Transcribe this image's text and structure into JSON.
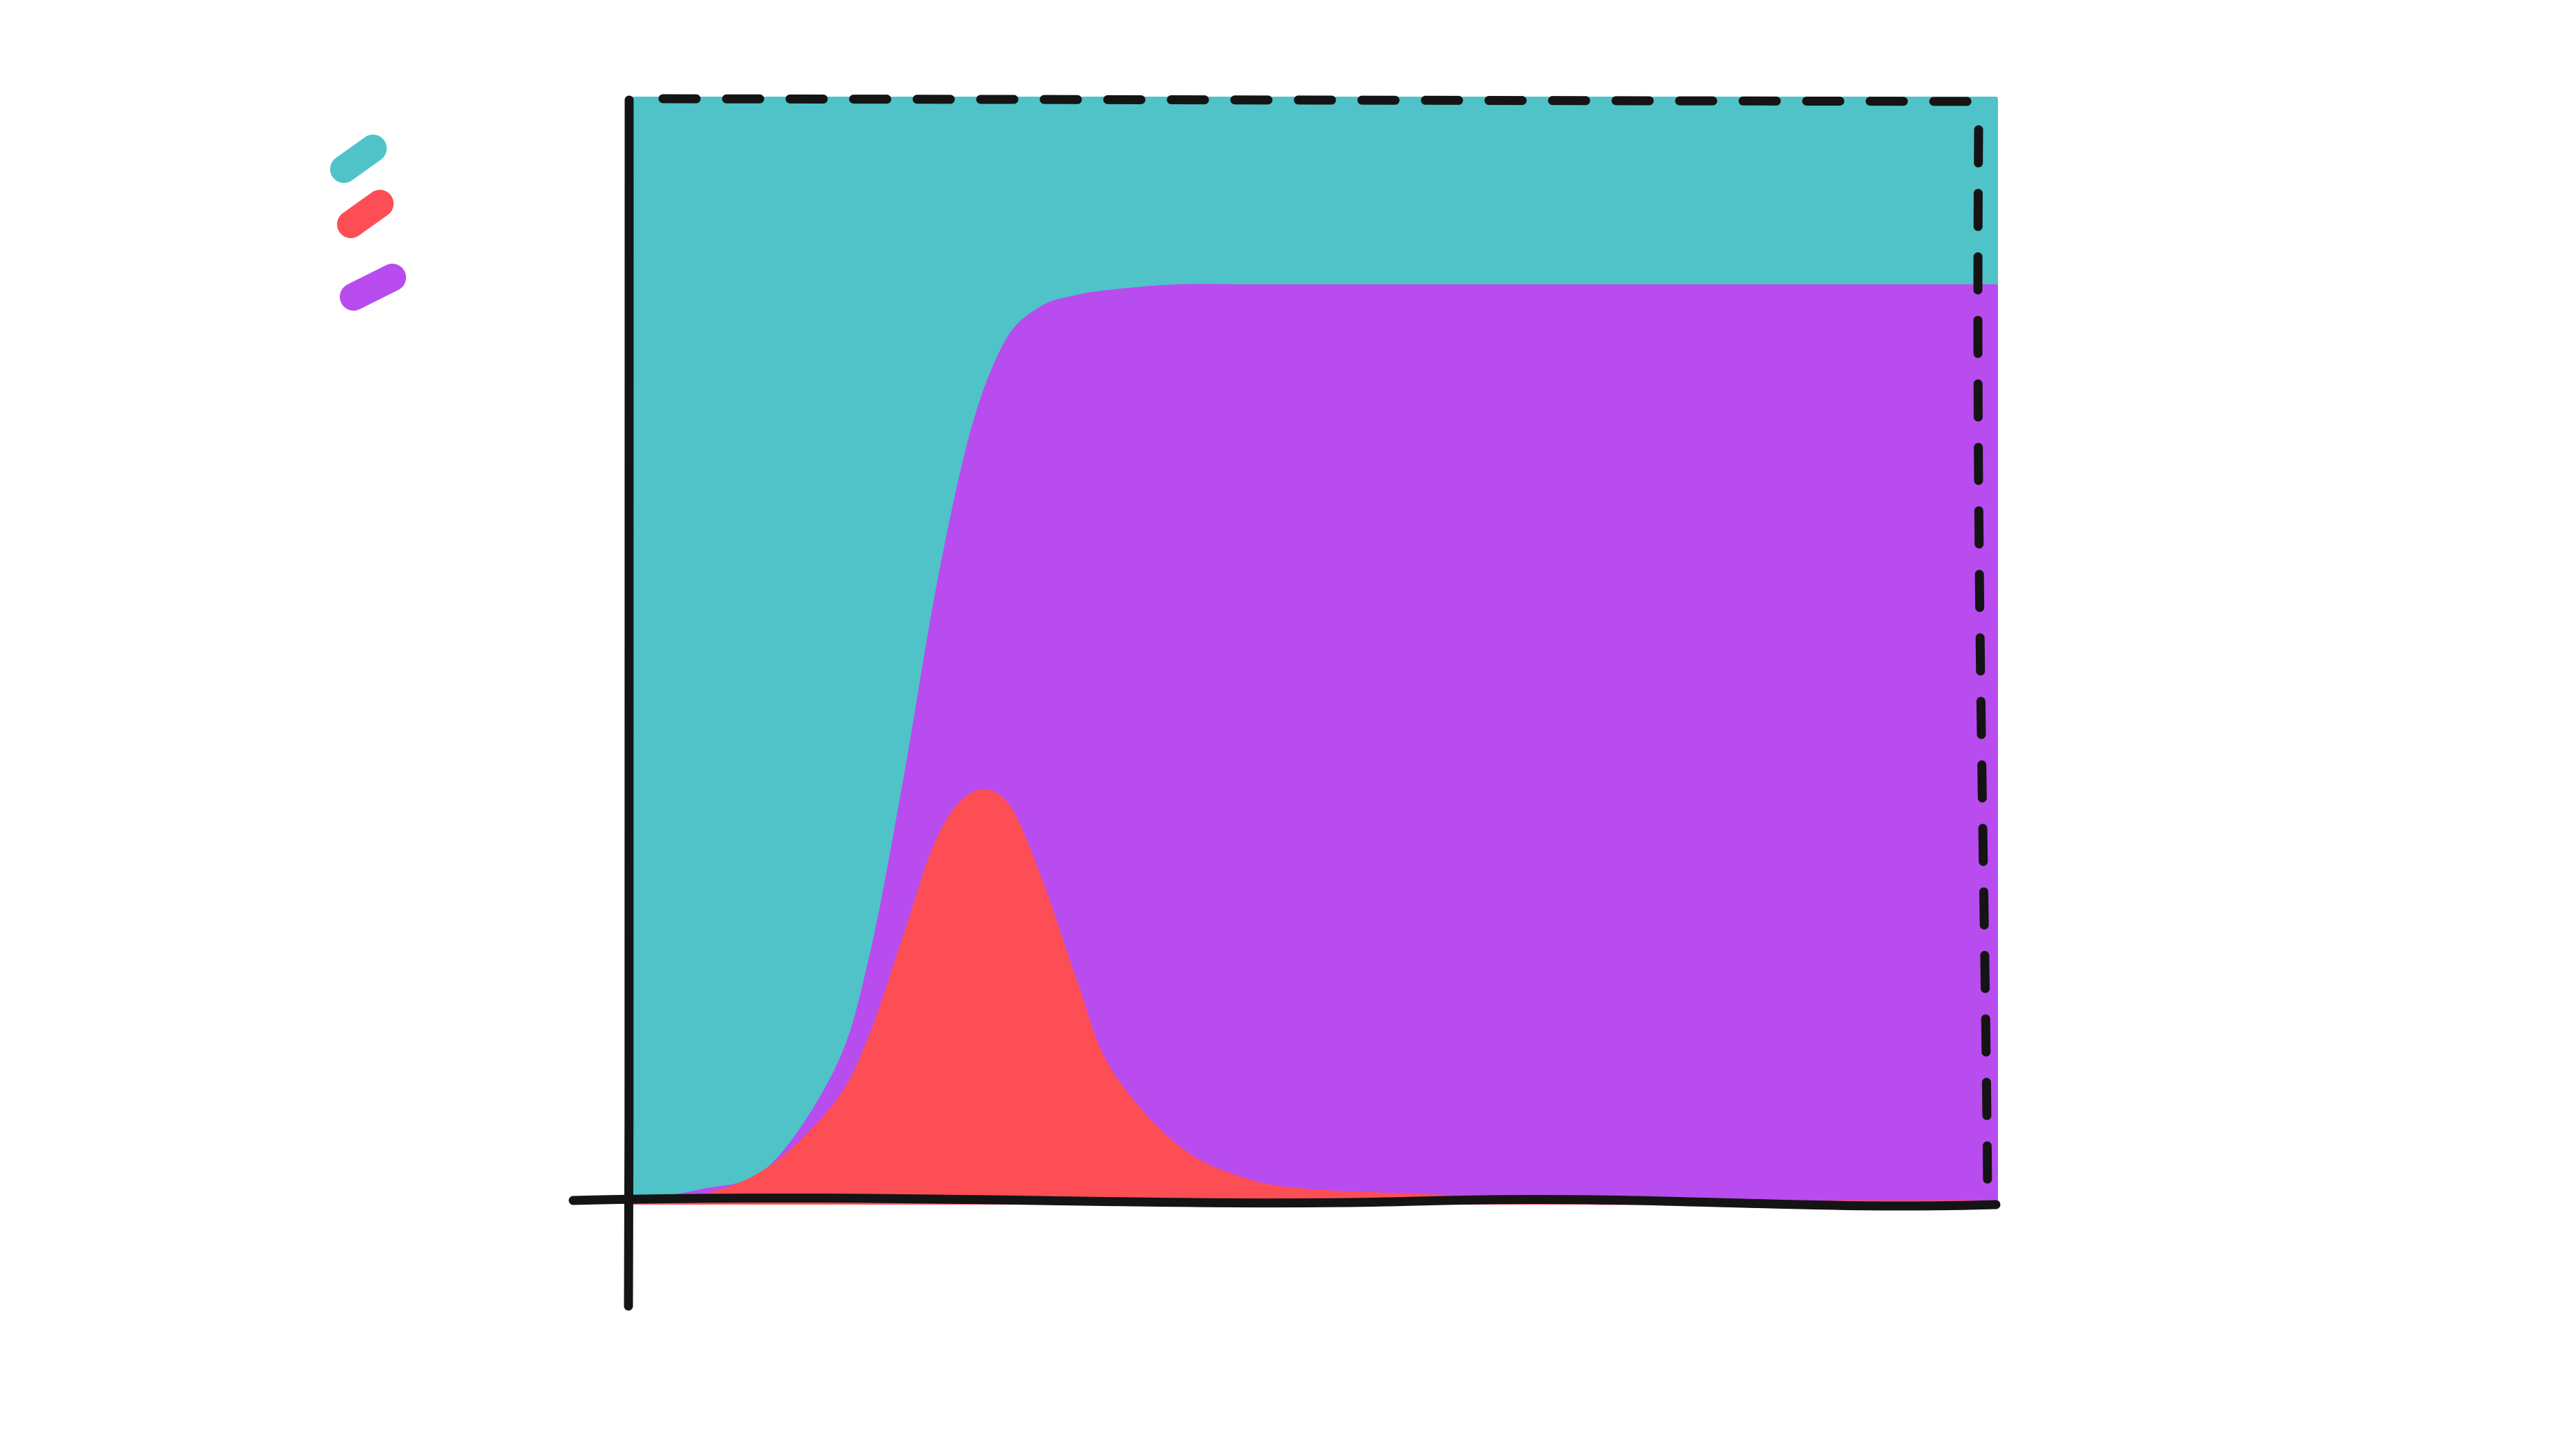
{
  "chart_data": {
    "type": "area",
    "stacked": true,
    "normalized": true,
    "title": "",
    "xlabel": "",
    "ylabel": "",
    "xlim": [
      0,
      100
    ],
    "ylim": [
      0,
      1
    ],
    "grid": false,
    "legend_position": "top-left",
    "x": [
      0,
      5,
      10,
      15,
      17.5,
      20,
      22.5,
      25,
      27.5,
      30,
      32.5,
      35,
      40,
      45,
      50,
      60,
      70,
      80,
      90,
      100
    ],
    "series": [
      {
        "color": "#4fc3c8",
        "values": [
          1.0,
          0.99,
          0.97,
          0.88,
          0.78,
          0.62,
          0.44,
          0.3,
          0.22,
          0.19,
          0.18,
          0.175,
          0.17,
          0.17,
          0.17,
          0.17,
          0.17,
          0.17,
          0.17,
          0.17
        ]
      },
      {
        "color": "#fe4e55",
        "values": [
          0.0,
          0.005,
          0.03,
          0.09,
          0.15,
          0.24,
          0.33,
          0.37,
          0.36,
          0.29,
          0.2,
          0.12,
          0.05,
          0.02,
          0.01,
          0.005,
          0.0,
          0.0,
          0.0,
          0.0
        ]
      },
      {
        "color": "#b84cee",
        "values": [
          0.0,
          0.005,
          0.0,
          0.03,
          0.07,
          0.14,
          0.23,
          0.33,
          0.42,
          0.52,
          0.62,
          0.705,
          0.78,
          0.81,
          0.82,
          0.825,
          0.83,
          0.83,
          0.83,
          0.83
        ]
      }
    ]
  }
}
